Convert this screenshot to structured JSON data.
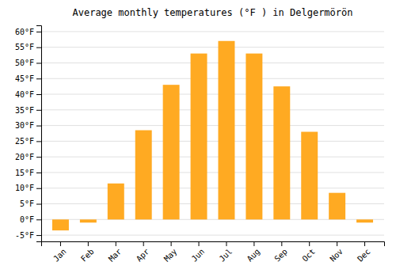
{
  "chart_data": {
    "type": "bar",
    "title": "Average monthly temperatures (°F ) in Delgermörön",
    "categories": [
      "Jan",
      "Feb",
      "Mar",
      "Apr",
      "May",
      "Jun",
      "Jul",
      "Aug",
      "Sep",
      "Oct",
      "Nov",
      "Dec"
    ],
    "values": [
      -3.5,
      -1.0,
      11.5,
      28.5,
      43.0,
      53.0,
      57.0,
      53.0,
      42.5,
      28.0,
      8.5,
      -1.0
    ],
    "color": "#FFAA22",
    "ylim": [
      -7,
      62
    ],
    "yticks": [
      {
        "value": -5,
        "label": "-5°F"
      },
      {
        "value": 0,
        "label": "0°F"
      },
      {
        "value": 5,
        "label": "5°F"
      },
      {
        "value": 10,
        "label": "10°F"
      },
      {
        "value": 15,
        "label": "15°F"
      },
      {
        "value": 20,
        "label": "20°F"
      },
      {
        "value": 25,
        "label": "25°F"
      },
      {
        "value": 30,
        "label": "30°F"
      },
      {
        "value": 35,
        "label": "35°F"
      },
      {
        "value": 40,
        "label": "40°F"
      },
      {
        "value": 45,
        "label": "45°F"
      },
      {
        "value": 50,
        "label": "50°F"
      },
      {
        "value": 55,
        "label": "55°F"
      },
      {
        "value": 60,
        "label": "60°F"
      }
    ],
    "grid": true
  }
}
